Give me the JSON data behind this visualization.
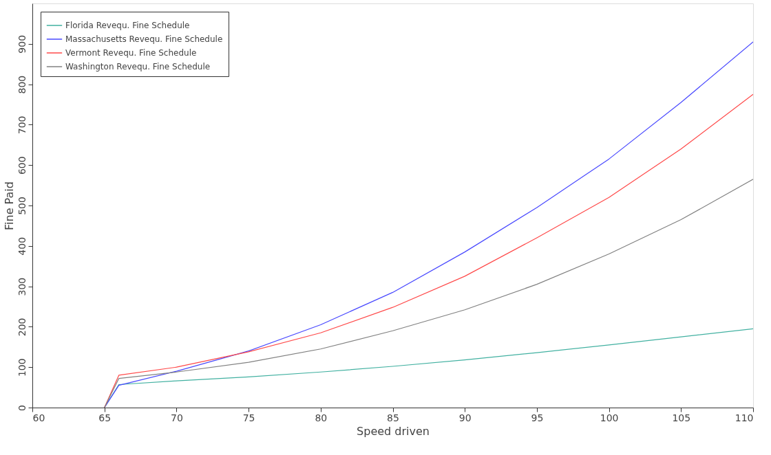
{
  "chart_data": {
    "type": "line",
    "xlabel": "Speed driven",
    "ylabel": "Fine Paid",
    "x": [
      65,
      66,
      70,
      75,
      80,
      85,
      90,
      95,
      100,
      105,
      110
    ],
    "series": [
      {
        "name": "Florida Revequ. Fine Schedule",
        "color": "#40b0a0",
        "values": [
          0,
          57,
          66,
          76,
          88,
          102,
          118,
          136,
          155,
          175,
          195
        ]
      },
      {
        "name": "Massachusetts Revequ. Fine Schedule",
        "color": "#4848ff",
        "values": [
          0,
          55,
          90,
          140,
          205,
          285,
          385,
          495,
          615,
          755,
          905
        ]
      },
      {
        "name": "Vermont Revequ. Fine Schedule",
        "color": "#ff4848",
        "values": [
          0,
          80,
          100,
          138,
          185,
          248,
          325,
          420,
          520,
          640,
          775
        ]
      },
      {
        "name": "Washington Revequ. Fine Schedule",
        "color": "#808080",
        "values": [
          0,
          72,
          88,
          112,
          145,
          190,
          242,
          305,
          380,
          465,
          565
        ]
      }
    ],
    "xlim": [
      60,
      110
    ],
    "xticks": [
      60,
      65,
      70,
      75,
      80,
      85,
      90,
      95,
      100,
      105,
      110
    ],
    "ylim": [
      0,
      1000
    ],
    "yticks": [
      0,
      100,
      200,
      300,
      400,
      500,
      600,
      700,
      800,
      900
    ],
    "grid": false,
    "legend": "top left",
    "marker": "none",
    "line_style": "solid"
  }
}
